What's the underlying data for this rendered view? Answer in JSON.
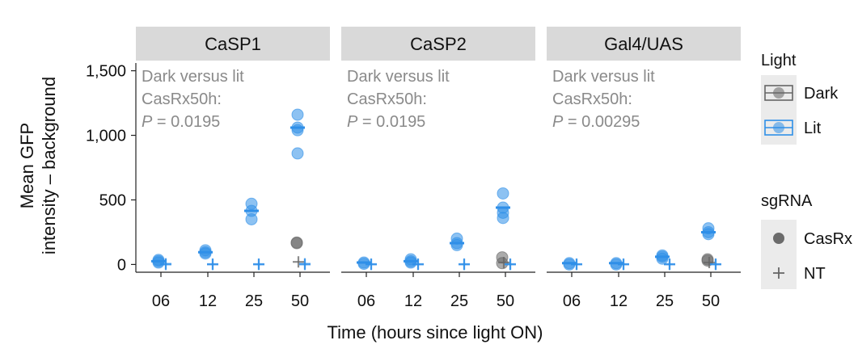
{
  "chart_data": {
    "type": "scatter",
    "facets": [
      {
        "label": "CaSP1",
        "annotation": [
          "Dark versus lit",
          "CasRx50h:",
          "P",
          " = 0.0195"
        ],
        "points": [
          {
            "time": "06",
            "light": "Lit",
            "sgrna": "CasRx",
            "y": 35
          },
          {
            "time": "06",
            "light": "Lit",
            "sgrna": "CasRx",
            "y": 25
          },
          {
            "time": "06",
            "light": "Lit",
            "sgrna": "CasRx",
            "y": 15
          },
          {
            "time": "06",
            "light": "Lit",
            "sgrna": "NT",
            "y": 5
          },
          {
            "time": "06",
            "light": "Lit",
            "sgrna": "NT",
            "y": 0
          },
          {
            "time": "12",
            "light": "Lit",
            "sgrna": "CasRx",
            "y": 110
          },
          {
            "time": "12",
            "light": "Lit",
            "sgrna": "CasRx",
            "y": 95
          },
          {
            "time": "12",
            "light": "Lit",
            "sgrna": "CasRx",
            "y": 85
          },
          {
            "time": "12",
            "light": "Lit",
            "sgrna": "NT",
            "y": 3
          },
          {
            "time": "12",
            "light": "Lit",
            "sgrna": "NT",
            "y": 0
          },
          {
            "time": "25",
            "light": "Lit",
            "sgrna": "CasRx",
            "y": 470
          },
          {
            "time": "25",
            "light": "Lit",
            "sgrna": "CasRx",
            "y": 415
          },
          {
            "time": "25",
            "light": "Lit",
            "sgrna": "CasRx",
            "y": 350
          },
          {
            "time": "25",
            "light": "Lit",
            "sgrna": "NT",
            "y": 3
          },
          {
            "time": "25",
            "light": "Lit",
            "sgrna": "NT",
            "y": 0
          },
          {
            "time": "50",
            "light": "Dark",
            "sgrna": "CasRx",
            "y": 170
          },
          {
            "time": "50",
            "light": "Dark",
            "sgrna": "CasRx",
            "y": 165
          },
          {
            "time": "50",
            "light": "Dark",
            "sgrna": "NT",
            "y": 20
          },
          {
            "time": "50",
            "light": "Lit",
            "sgrna": "CasRx",
            "y": 1160
          },
          {
            "time": "50",
            "light": "Lit",
            "sgrna": "CasRx",
            "y": 1060
          },
          {
            "time": "50",
            "light": "Lit",
            "sgrna": "CasRx",
            "y": 1040
          },
          {
            "time": "50",
            "light": "Lit",
            "sgrna": "CasRx",
            "y": 860
          },
          {
            "time": "50",
            "light": "Lit",
            "sgrna": "NT",
            "y": 5
          },
          {
            "time": "50",
            "light": "Lit",
            "sgrna": "NT",
            "y": 0
          }
        ]
      },
      {
        "label": "CaSP2",
        "annotation": [
          "Dark versus lit",
          "CasRx50h:",
          "P",
          " = 0.0195"
        ],
        "points": [
          {
            "time": "06",
            "light": "Lit",
            "sgrna": "CasRx",
            "y": 15
          },
          {
            "time": "06",
            "light": "Lit",
            "sgrna": "CasRx",
            "y": 5
          },
          {
            "time": "06",
            "light": "Lit",
            "sgrna": "NT",
            "y": 3
          },
          {
            "time": "06",
            "light": "Lit",
            "sgrna": "NT",
            "y": 0
          },
          {
            "time": "12",
            "light": "Lit",
            "sgrna": "CasRx",
            "y": 40
          },
          {
            "time": "12",
            "light": "Lit",
            "sgrna": "CasRx",
            "y": 25
          },
          {
            "time": "12",
            "light": "Lit",
            "sgrna": "CasRx",
            "y": 15
          },
          {
            "time": "12",
            "light": "Lit",
            "sgrna": "NT",
            "y": 3
          },
          {
            "time": "12",
            "light": "Lit",
            "sgrna": "NT",
            "y": 0
          },
          {
            "time": "25",
            "light": "Lit",
            "sgrna": "CasRx",
            "y": 200
          },
          {
            "time": "25",
            "light": "Lit",
            "sgrna": "CasRx",
            "y": 165
          },
          {
            "time": "25",
            "light": "Lit",
            "sgrna": "CasRx",
            "y": 150
          },
          {
            "time": "25",
            "light": "Lit",
            "sgrna": "NT",
            "y": 3
          },
          {
            "time": "25",
            "light": "Lit",
            "sgrna": "NT",
            "y": 0
          },
          {
            "time": "50",
            "light": "Dark",
            "sgrna": "CasRx",
            "y": 55
          },
          {
            "time": "50",
            "light": "Dark",
            "sgrna": "CasRx",
            "y": 10
          },
          {
            "time": "50",
            "light": "Dark",
            "sgrna": "NT",
            "y": 15
          },
          {
            "time": "50",
            "light": "Lit",
            "sgrna": "CasRx",
            "y": 550
          },
          {
            "time": "50",
            "light": "Lit",
            "sgrna": "CasRx",
            "y": 440
          },
          {
            "time": "50",
            "light": "Lit",
            "sgrna": "CasRx",
            "y": 400
          },
          {
            "time": "50",
            "light": "Lit",
            "sgrna": "CasRx",
            "y": 360
          },
          {
            "time": "50",
            "light": "Lit",
            "sgrna": "NT",
            "y": 3
          },
          {
            "time": "50",
            "light": "Lit",
            "sgrna": "NT",
            "y": 0
          }
        ]
      },
      {
        "label": "Gal4/UAS",
        "annotation": [
          "Dark versus lit",
          "CasRx50h:",
          "P",
          " = 0.00295"
        ],
        "points": [
          {
            "time": "06",
            "light": "Lit",
            "sgrna": "CasRx",
            "y": 10
          },
          {
            "time": "06",
            "light": "Lit",
            "sgrna": "CasRx",
            "y": 0
          },
          {
            "time": "06",
            "light": "Lit",
            "sgrna": "NT",
            "y": 3
          },
          {
            "time": "06",
            "light": "Lit",
            "sgrna": "NT",
            "y": 0
          },
          {
            "time": "12",
            "light": "Lit",
            "sgrna": "CasRx",
            "y": 10
          },
          {
            "time": "12",
            "light": "Lit",
            "sgrna": "CasRx",
            "y": 0
          },
          {
            "time": "12",
            "light": "Lit",
            "sgrna": "NT",
            "y": 3
          },
          {
            "time": "12",
            "light": "Lit",
            "sgrna": "NT",
            "y": 0
          },
          {
            "time": "25",
            "light": "Lit",
            "sgrna": "CasRx",
            "y": 70
          },
          {
            "time": "25",
            "light": "Lit",
            "sgrna": "CasRx",
            "y": 60
          },
          {
            "time": "25",
            "light": "Lit",
            "sgrna": "CasRx",
            "y": 45
          },
          {
            "time": "25",
            "light": "Lit",
            "sgrna": "NT",
            "y": 3
          },
          {
            "time": "25",
            "light": "Lit",
            "sgrna": "NT",
            "y": 0
          },
          {
            "time": "50",
            "light": "Dark",
            "sgrna": "CasRx",
            "y": 40
          },
          {
            "time": "50",
            "light": "Dark",
            "sgrna": "CasRx",
            "y": 30
          },
          {
            "time": "50",
            "light": "Dark",
            "sgrna": "NT",
            "y": 15
          },
          {
            "time": "50",
            "light": "Lit",
            "sgrna": "CasRx",
            "y": 280
          },
          {
            "time": "50",
            "light": "Lit",
            "sgrna": "CasRx",
            "y": 250
          },
          {
            "time": "50",
            "light": "Lit",
            "sgrna": "CasRx",
            "y": 235
          },
          {
            "time": "50",
            "light": "Lit",
            "sgrna": "NT",
            "y": 3
          },
          {
            "time": "50",
            "light": "Lit",
            "sgrna": "NT",
            "y": 0
          }
        ]
      }
    ],
    "x_categories": [
      "06",
      "12",
      "25",
      "50"
    ],
    "xlabel": "Time (hours since light ON)",
    "ylabel": [
      "Mean GFP",
      "intensity – background"
    ],
    "ylim": [
      -60,
      1560
    ],
    "yticks": [
      0,
      500,
      1000,
      1500
    ],
    "ytick_labels": [
      "0",
      "500",
      "1,000",
      "1,500"
    ],
    "grid": false,
    "legend_placement": "right",
    "legends": [
      {
        "title": "Light",
        "entries": [
          "Dark",
          "Lit"
        ]
      },
      {
        "title": "sgRNA",
        "entries": [
          "CasRx",
          "NT"
        ]
      }
    ],
    "colors": {
      "Dark": "#666666",
      "Lit": "#2f8fe8"
    }
  }
}
